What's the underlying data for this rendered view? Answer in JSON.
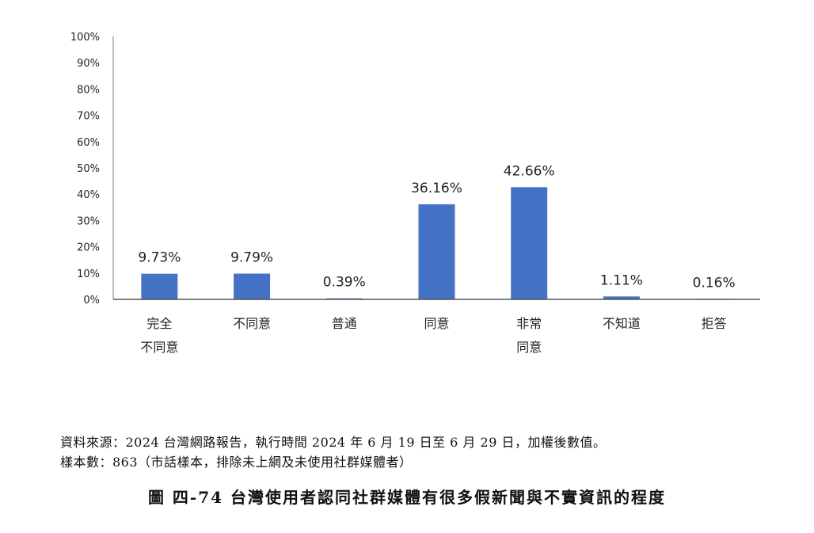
{
  "chart_data": {
    "type": "bar",
    "categories": [
      [
        "完全",
        "不同意"
      ],
      [
        "不同意"
      ],
      [
        "普通"
      ],
      [
        "同意"
      ],
      [
        "非常",
        "同意"
      ],
      [
        "不知道"
      ],
      [
        "拒答"
      ]
    ],
    "values": [
      9.73,
      9.79,
      0.39,
      36.16,
      42.66,
      1.11,
      0.16
    ],
    "data_labels": [
      "9.73%",
      "9.79%",
      "0.39%",
      "36.16%",
      "42.66%",
      "1.11%",
      "0.16%"
    ],
    "y_ticks": [
      "0%",
      "10%",
      "20%",
      "30%",
      "40%",
      "50%",
      "60%",
      "70%",
      "80%",
      "90%",
      "100%"
    ],
    "ylim": [
      0,
      100
    ],
    "grid": false,
    "bar_color": "#4472C4",
    "title": "",
    "xlabel": "",
    "ylabel": ""
  },
  "source": {
    "line1": "資料來源：2024 台灣網路報告，執行時間 2024 年 6 月 19 日至 6 月 29 日，加權後數值。",
    "line2": "樣本數：863（市話樣本，排除未上網及未使用社群媒體者）"
  },
  "caption": "圖 四-74 台灣使用者認同社群媒體有很多假新聞與不實資訊的程度"
}
